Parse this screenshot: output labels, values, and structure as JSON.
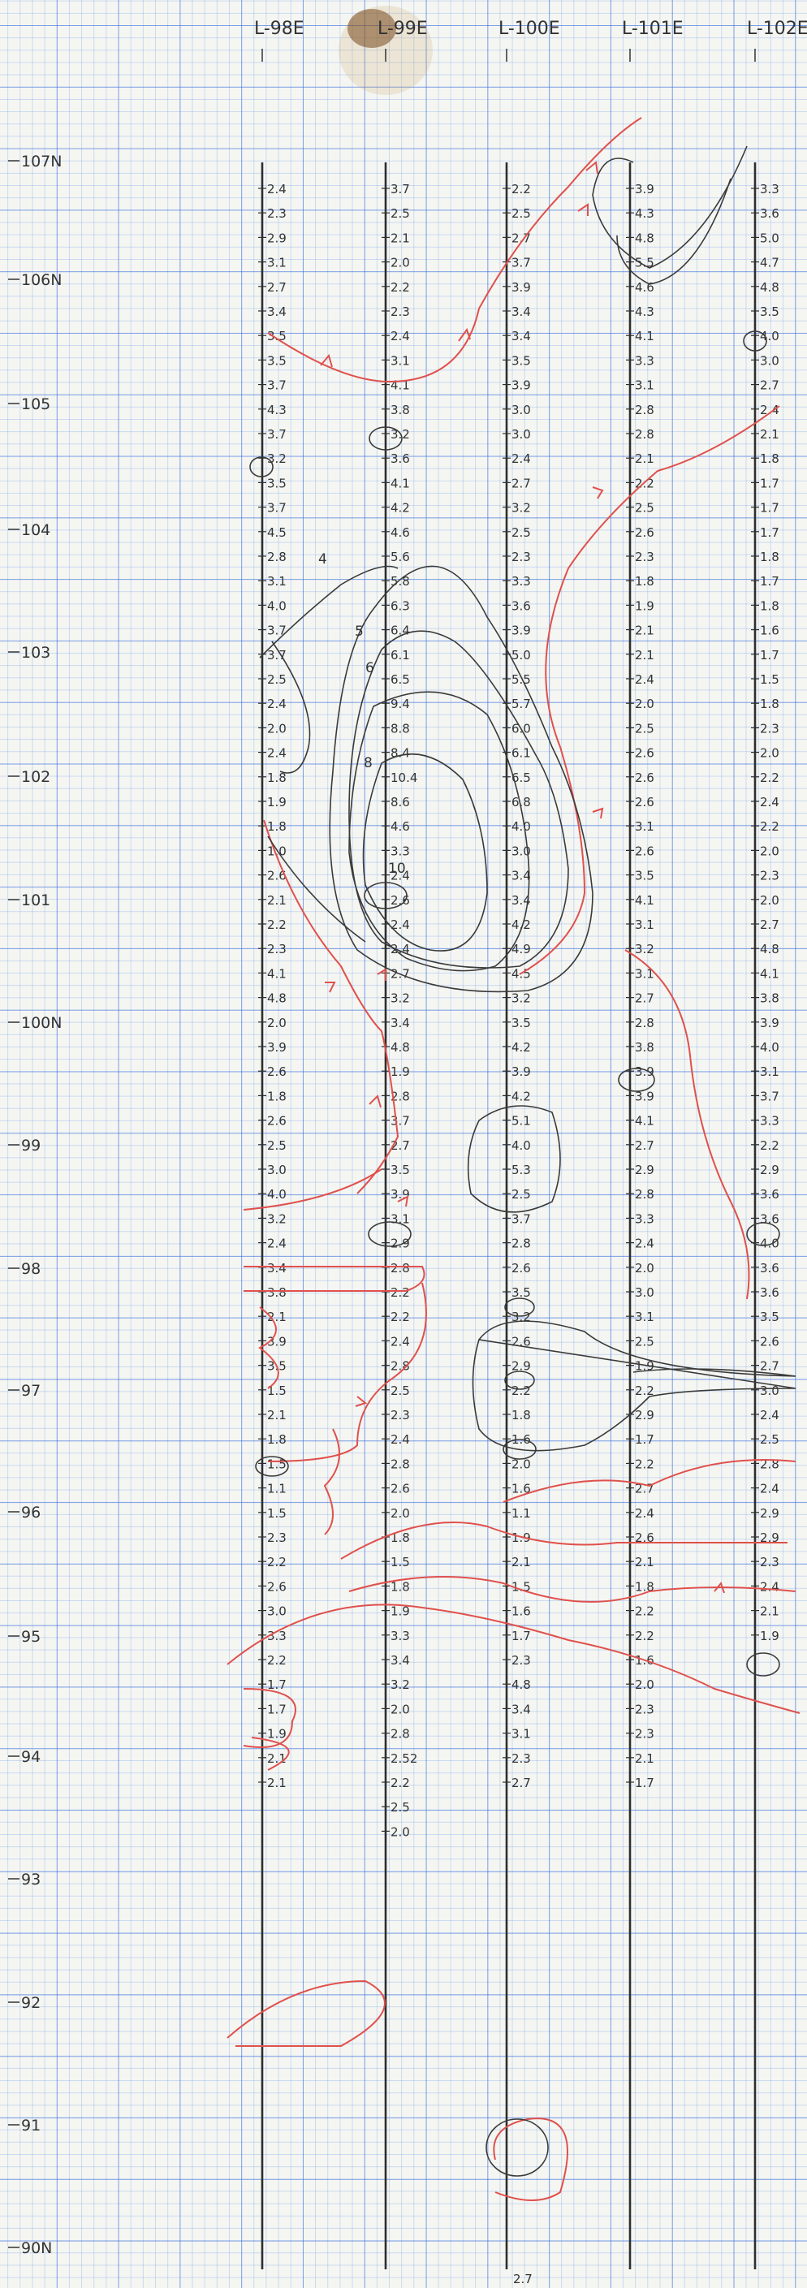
{
  "lines": [
    {
      "name": "L-98E",
      "values": [
        "2.4",
        "2.3",
        "2.9",
        "3.1",
        "2.7",
        "3.4",
        "3.5",
        "3.5",
        "3.7",
        "4.3",
        "3.7",
        "3.2",
        "3.5",
        "3.7",
        "4.5",
        "2.8",
        "3.1",
        "4.0",
        "3.7",
        "3.7",
        "2.5",
        "2.4",
        "2.0",
        "2.4",
        "1.8",
        "1.9",
        "1.8",
        "1.0",
        "2.6",
        "2.1",
        "2.2",
        "2.3",
        "4.1",
        "4.8",
        "2.0",
        "3.9",
        "2.6",
        "1.8",
        "2.6",
        "2.5",
        "3.0",
        "4.0",
        "3.2",
        "2.4",
        "3.4",
        "3.8",
        "2.1",
        "3.9",
        "3.5",
        "1.5",
        "2.1",
        "1.8",
        "1.5",
        "1.1",
        "1.5",
        "2.3",
        "2.2",
        "2.6",
        "3.0",
        "3.3",
        "2.2",
        "1.7",
        "1.7",
        "1.9",
        "2.1",
        "2.1"
      ]
    },
    {
      "name": "L-99E",
      "values": [
        "3.7",
        "2.5",
        "2.1",
        "2.0",
        "2.2",
        "2.3",
        "2.4",
        "3.1",
        "4.1",
        "3.8",
        "3.2",
        "3.6",
        "4.1",
        "4.2",
        "4.6",
        "5.6",
        "5.8",
        "6.3",
        "6.4",
        "6.1",
        "6.5",
        "9.4",
        "8.8",
        "8.4",
        "10.4",
        "8.6",
        "4.6",
        "3.3",
        "2.4",
        "2.6",
        "2.4",
        "2.4",
        "2.7",
        "3.2",
        "3.4",
        "4.8",
        "1.9",
        "2.8",
        "3.7",
        "2.7",
        "3.5",
        "3.9",
        "3.1",
        "2.9",
        "2.8",
        "2.2",
        "2.2",
        "2.4",
        "2.8",
        "2.5",
        "2.3",
        "2.4",
        "2.8",
        "2.6",
        "2.0",
        "1.8",
        "1.5",
        "1.8",
        "1.9",
        "3.3",
        "3.4",
        "3.2",
        "2.0",
        "2.8",
        "2.52",
        "2.2",
        "2.5",
        "2.0"
      ]
    },
    {
      "name": "L-100E",
      "values": [
        "2.2",
        "2.5",
        "2.7",
        "3.7",
        "3.9",
        "3.4",
        "3.4",
        "3.5",
        "3.9",
        "3.0",
        "3.0",
        "2.4",
        "2.7",
        "3.2",
        "2.5",
        "2.3",
        "3.3",
        "3.6",
        "3.9",
        "5.0",
        "5.5",
        "5.7",
        "6.0",
        "6.1",
        "6.5",
        "6.8",
        "4.0",
        "3.0",
        "3.4",
        "3.4",
        "4.2",
        "4.9",
        "4.5",
        "3.2",
        "3.5",
        "4.2",
        "3.9",
        "4.2",
        "5.1",
        "4.0",
        "5.3",
        "2.5",
        "3.7",
        "2.8",
        "2.6",
        "3.5",
        "3.2",
        "2.6",
        "2.9",
        "2.2",
        "1.8",
        "1.6",
        "2.0",
        "1.6",
        "1.1",
        "1.9",
        "2.1",
        "1.5",
        "1.6",
        "1.7",
        "2.3",
        "4.8",
        "3.4",
        "3.1",
        "2.3",
        "2.7"
      ]
    },
    {
      "name": "L-101E",
      "values": [
        "3.9",
        "4.3",
        "4.8",
        "5.5",
        "4.6",
        "4.3",
        "4.1",
        "3.3",
        "3.1",
        "2.8",
        "2.8",
        "2.1",
        "2.2",
        "2.5",
        "2.6",
        "2.3",
        "1.8",
        "1.9",
        "2.1",
        "2.1",
        "2.4",
        "2.0",
        "2.5",
        "2.6",
        "2.6",
        "2.6",
        "3.1",
        "2.6",
        "3.5",
        "4.1",
        "3.1",
        "3.2",
        "3.1",
        "2.7",
        "2.8",
        "3.8",
        "3.9",
        "3.9",
        "4.1",
        "2.7",
        "2.9",
        "2.8",
        "3.3",
        "2.4",
        "2.0",
        "3.0",
        "3.1",
        "2.5",
        "1.9",
        "2.2",
        "2.9",
        "1.7",
        "2.2",
        "2.7",
        "2.4",
        "2.6",
        "2.1",
        "1.8",
        "2.2",
        "2.2",
        "1.6",
        "2.0",
        "2.3",
        "2.3",
        "2.1",
        "1.7"
      ]
    },
    {
      "name": "L-102E",
      "values": [
        "3.3",
        "3.6",
        "5.0",
        "4.7",
        "4.8",
        "3.5",
        "4.0",
        "3.0",
        "2.7",
        "2.4",
        "2.1",
        "1.8",
        "1.7",
        "1.7",
        "1.7",
        "1.8",
        "1.7",
        "1.8",
        "1.6",
        "1.7",
        "1.5",
        "1.8",
        "2.3",
        "2.0",
        "2.2",
        "2.4",
        "2.2",
        "2.0",
        "2.3",
        "2.0",
        "2.7",
        "4.8",
        "4.1",
        "3.8",
        "3.9",
        "4.0",
        "3.1",
        "3.7",
        "3.3",
        "2.2",
        "2.9",
        "3.6",
        "3.6",
        "4.0",
        "3.6",
        "3.6",
        "3.5",
        "2.6",
        "2.7",
        "3.0",
        "2.4",
        "2.5",
        "2.8",
        "2.4",
        "2.9",
        "2.9",
        "2.3",
        "2.4",
        "2.1",
        "1.9"
      ]
    }
  ],
  "northings": [
    "107N",
    "106N",
    "105",
    "104",
    "103",
    "102",
    "101",
    "100N",
    "99",
    "98",
    "97",
    "96",
    "95",
    "94",
    "93",
    "92",
    "91",
    "90N"
  ],
  "bottom_value": "2.7",
  "contour_labels": [
    "4",
    "5",
    "6",
    "8",
    "10"
  ],
  "colors": {
    "pencil": "#3a3a3a",
    "red": "#e0504c",
    "grid_major": "#3c6edc",
    "grid_minor": "#5a8ce6"
  }
}
